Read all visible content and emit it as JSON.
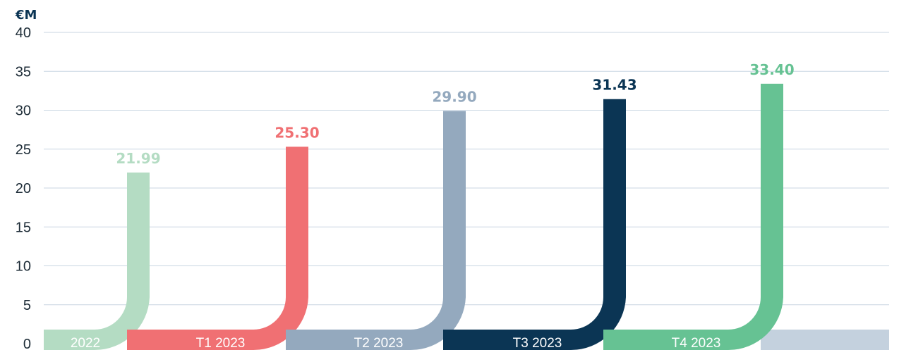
{
  "chart_data": {
    "type": "bar",
    "unit_label": "€M",
    "categories": [
      "2022",
      "T1 2023",
      "T2 2023",
      "T3 2023",
      "T4 2023"
    ],
    "values": [
      21.99,
      25.3,
      29.9,
      31.43,
      33.4
    ],
    "value_labels": [
      "21.99",
      "25.30",
      "29.90",
      "31.43",
      "33.40"
    ],
    "colors": [
      "#b4dcc3",
      "#f07073",
      "#94a9be",
      "#0b3554",
      "#66c293"
    ],
    "trailing_band_color": "#c4d1de",
    "ylim": [
      0,
      40
    ],
    "yticks": [
      "0",
      "5",
      "10",
      "15",
      "20",
      "25",
      "30",
      "35",
      "40"
    ],
    "grid": true,
    "legend": "none"
  }
}
